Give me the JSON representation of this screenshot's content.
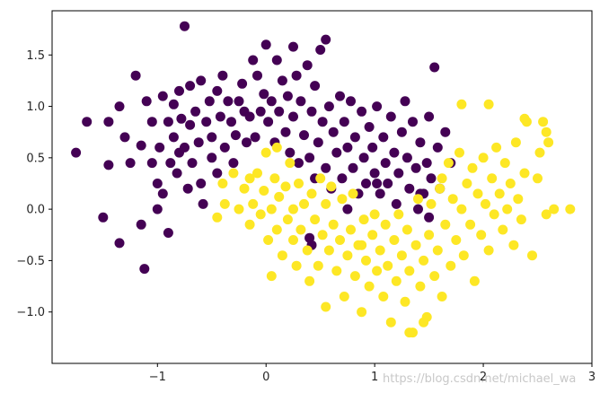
{
  "chart_data": {
    "type": "scatter",
    "title": "",
    "xlabel": "",
    "ylabel": "",
    "xlim": [
      -1.97,
      3.0
    ],
    "ylim": [
      -1.5,
      1.93
    ],
    "x_ticks": [
      -1,
      0,
      1,
      2,
      3
    ],
    "y_ticks": [
      -1.0,
      -0.5,
      0.0,
      0.5,
      1.0,
      1.5
    ],
    "x_tick_labels": [
      "−1",
      "0",
      "1",
      "2",
      "3"
    ],
    "y_tick_labels": [
      "−1.0",
      "−0.5",
      "0.0",
      "0.5",
      "1.0",
      "1.5"
    ],
    "grid": false,
    "legend": "none",
    "series": [
      {
        "color": "#440154",
        "points": [
          [
            -1.75,
            0.55
          ],
          [
            -1.65,
            0.85
          ],
          [
            -1.5,
            -0.08
          ],
          [
            -1.45,
            0.85
          ],
          [
            -1.45,
            0.43
          ],
          [
            -1.35,
            1.0
          ],
          [
            -1.35,
            -0.33
          ],
          [
            -1.3,
            0.7
          ],
          [
            -1.25,
            0.45
          ],
          [
            -1.2,
            1.3
          ],
          [
            -1.15,
            0.62
          ],
          [
            -1.15,
            -0.15
          ],
          [
            -1.12,
            -0.58
          ],
          [
            -1.1,
            1.05
          ],
          [
            -1.05,
            0.45
          ],
          [
            -1.05,
            0.85
          ],
          [
            -1.0,
            0.25
          ],
          [
            -1.0,
            0.0
          ],
          [
            -0.98,
            0.6
          ],
          [
            -0.95,
            1.1
          ],
          [
            -0.95,
            0.15
          ],
          [
            -0.9,
            0.85
          ],
          [
            -0.9,
            -0.23
          ],
          [
            -0.88,
            0.45
          ],
          [
            -0.85,
            1.02
          ],
          [
            -0.85,
            0.7
          ],
          [
            -0.82,
            0.35
          ],
          [
            -0.8,
            1.15
          ],
          [
            -0.8,
            0.55
          ],
          [
            -0.78,
            0.88
          ],
          [
            -0.75,
            1.78
          ],
          [
            -0.75,
            0.6
          ],
          [
            -0.72,
            0.2
          ],
          [
            -0.7,
            1.2
          ],
          [
            -0.7,
            0.82
          ],
          [
            -0.68,
            0.45
          ],
          [
            -0.65,
            0.95
          ],
          [
            -0.62,
            0.65
          ],
          [
            -0.6,
            1.25
          ],
          [
            -0.6,
            0.25
          ],
          [
            -0.58,
            0.05
          ],
          [
            -0.55,
            0.85
          ],
          [
            -0.52,
            1.05
          ],
          [
            -0.5,
            0.5
          ],
          [
            -0.5,
            0.7
          ],
          [
            -0.45,
            1.15
          ],
          [
            -0.45,
            0.35
          ],
          [
            -0.42,
            0.9
          ],
          [
            -0.4,
            1.3
          ],
          [
            -0.38,
            0.6
          ],
          [
            -0.35,
            1.05
          ],
          [
            -0.32,
            0.85
          ],
          [
            -0.3,
            0.45
          ],
          [
            -0.28,
            0.72
          ],
          [
            -0.25,
            1.05
          ],
          [
            -0.22,
            1.22
          ],
          [
            -0.2,
            0.95
          ],
          [
            -0.18,
            0.65
          ],
          [
            -0.15,
            0.9
          ],
          [
            -0.12,
            1.45
          ],
          [
            -0.1,
            0.7
          ],
          [
            -0.08,
            1.3
          ],
          [
            -0.05,
            0.95
          ],
          [
            -0.02,
            1.12
          ],
          [
            0.0,
            1.6
          ],
          [
            0.02,
            0.85
          ],
          [
            0.05,
            1.05
          ],
          [
            0.08,
            0.65
          ],
          [
            0.1,
            1.45
          ],
          [
            0.12,
            0.95
          ],
          [
            0.15,
            1.25
          ],
          [
            0.18,
            0.75
          ],
          [
            0.2,
            1.1
          ],
          [
            0.22,
            0.55
          ],
          [
            0.25,
            1.58
          ],
          [
            0.25,
            0.9
          ],
          [
            0.28,
            1.3
          ],
          [
            0.3,
            0.45
          ],
          [
            0.32,
            1.05
          ],
          [
            0.35,
            0.72
          ],
          [
            0.38,
            1.4
          ],
          [
            0.4,
            0.5
          ],
          [
            0.42,
            0.95
          ],
          [
            0.45,
            1.2
          ],
          [
            0.45,
            0.3
          ],
          [
            0.48,
            0.65
          ],
          [
            0.5,
            1.55
          ],
          [
            0.52,
            0.85
          ],
          [
            0.55,
            1.65
          ],
          [
            0.55,
            0.4
          ],
          [
            0.58,
            1.0
          ],
          [
            0.6,
            0.2
          ],
          [
            0.62,
            0.75
          ],
          [
            0.65,
            0.55
          ],
          [
            0.68,
            1.1
          ],
          [
            0.7,
            0.3
          ],
          [
            0.72,
            0.85
          ],
          [
            0.75,
            0.0
          ],
          [
            0.75,
            0.6
          ],
          [
            0.78,
            1.05
          ],
          [
            0.8,
            0.4
          ],
          [
            0.82,
            0.7
          ],
          [
            0.85,
            0.15
          ],
          [
            0.88,
            0.95
          ],
          [
            0.9,
            0.5
          ],
          [
            0.92,
            0.25
          ],
          [
            0.95,
            0.8
          ],
          [
            0.98,
            0.6
          ],
          [
            1.0,
            0.35
          ],
          [
            1.02,
            1.0
          ],
          [
            1.05,
            0.15
          ],
          [
            1.08,
            0.7
          ],
          [
            1.1,
            0.45
          ],
          [
            1.12,
            0.25
          ],
          [
            1.15,
            0.9
          ],
          [
            1.18,
            0.55
          ],
          [
            1.2,
            0.05
          ],
          [
            1.22,
            0.35
          ],
          [
            1.25,
            0.75
          ],
          [
            1.28,
            1.05
          ],
          [
            1.3,
            0.5
          ],
          [
            1.32,
            0.2
          ],
          [
            1.35,
            0.85
          ],
          [
            1.38,
            0.4
          ],
          [
            1.4,
            0.0
          ],
          [
            1.42,
            0.65
          ],
          [
            1.45,
            0.15
          ],
          [
            1.48,
            0.45
          ],
          [
            1.5,
            0.9
          ],
          [
            1.52,
            0.3
          ],
          [
            1.55,
            1.38
          ],
          [
            1.58,
            0.6
          ],
          [
            1.6,
            0.2
          ],
          [
            1.65,
            0.75
          ],
          [
            1.7,
            0.45
          ],
          [
            1.5,
            -0.08
          ],
          [
            1.42,
            0.15
          ],
          [
            1.02,
            0.25
          ],
          [
            0.42,
            -0.35
          ],
          [
            0.4,
            -0.28
          ]
        ]
      },
      {
        "color": "#fde725",
        "points": [
          [
            -0.45,
            -0.08
          ],
          [
            -0.4,
            0.25
          ],
          [
            -0.38,
            0.05
          ],
          [
            -0.3,
            0.35
          ],
          [
            -0.25,
            0.0
          ],
          [
            -0.2,
            0.2
          ],
          [
            -0.15,
            -0.15
          ],
          [
            -0.12,
            0.05
          ],
          [
            -0.08,
            0.35
          ],
          [
            -0.05,
            -0.05
          ],
          [
            -0.02,
            0.18
          ],
          [
            0.0,
            0.55
          ],
          [
            0.02,
            -0.3
          ],
          [
            0.05,
            -0.65
          ],
          [
            0.05,
            0.0
          ],
          [
            0.08,
            0.3
          ],
          [
            0.1,
            -0.2
          ],
          [
            0.12,
            0.12
          ],
          [
            0.15,
            -0.45
          ],
          [
            0.18,
            0.22
          ],
          [
            0.2,
            -0.1
          ],
          [
            0.22,
            0.45
          ],
          [
            0.25,
            -0.3
          ],
          [
            0.25,
            0.0
          ],
          [
            0.28,
            -0.55
          ],
          [
            0.3,
            0.25
          ],
          [
            0.32,
            -0.2
          ],
          [
            0.35,
            0.05
          ],
          [
            0.38,
            -0.4
          ],
          [
            0.4,
            -0.7
          ],
          [
            0.42,
            0.15
          ],
          [
            0.45,
            -0.1
          ],
          [
            0.48,
            -0.55
          ],
          [
            0.5,
            0.3
          ],
          [
            0.52,
            -0.25
          ],
          [
            0.55,
            -0.95
          ],
          [
            0.55,
            0.05
          ],
          [
            0.58,
            -0.4
          ],
          [
            0.6,
            0.22
          ],
          [
            0.62,
            -0.15
          ],
          [
            0.65,
            -0.6
          ],
          [
            0.68,
            -0.3
          ],
          [
            0.7,
            0.1
          ],
          [
            0.72,
            -0.85
          ],
          [
            0.75,
            -0.45
          ],
          [
            0.78,
            -0.2
          ],
          [
            0.8,
            0.15
          ],
          [
            0.82,
            -0.65
          ],
          [
            0.85,
            -0.35
          ],
          [
            0.88,
            -1.0
          ],
          [
            0.9,
            -0.1
          ],
          [
            0.92,
            -0.5
          ],
          [
            0.95,
            -0.75
          ],
          [
            0.98,
            -0.25
          ],
          [
            1.0,
            -0.05
          ],
          [
            1.02,
            -0.6
          ],
          [
            1.05,
            -0.4
          ],
          [
            1.08,
            -0.85
          ],
          [
            1.1,
            -0.15
          ],
          [
            1.12,
            -0.55
          ],
          [
            1.15,
            -1.1
          ],
          [
            1.18,
            -0.3
          ],
          [
            1.2,
            -0.7
          ],
          [
            1.22,
            -0.05
          ],
          [
            1.25,
            -0.45
          ],
          [
            1.28,
            -0.9
          ],
          [
            1.3,
            -0.2
          ],
          [
            1.32,
            -0.6
          ],
          [
            1.35,
            -1.2
          ],
          [
            1.38,
            -0.35
          ],
          [
            1.4,
            0.1
          ],
          [
            1.42,
            -0.75
          ],
          [
            1.45,
            -0.5
          ],
          [
            1.48,
            -1.05
          ],
          [
            1.5,
            -0.25
          ],
          [
            1.52,
            0.05
          ],
          [
            1.55,
            -0.65
          ],
          [
            1.58,
            -0.4
          ],
          [
            1.6,
            0.2
          ],
          [
            1.62,
            -0.85
          ],
          [
            1.65,
            -0.15
          ],
          [
            1.68,
            0.45
          ],
          [
            1.7,
            -0.55
          ],
          [
            1.72,
            0.1
          ],
          [
            1.75,
            -0.3
          ],
          [
            1.78,
            0.55
          ],
          [
            1.8,
            0.0
          ],
          [
            1.82,
            -0.45
          ],
          [
            1.85,
            0.25
          ],
          [
            1.88,
            -0.15
          ],
          [
            1.9,
            0.4
          ],
          [
            1.92,
            -0.7
          ],
          [
            1.95,
            0.15
          ],
          [
            1.98,
            -0.25
          ],
          [
            2.0,
            0.5
          ],
          [
            2.02,
            0.05
          ],
          [
            2.05,
            -0.4
          ],
          [
            2.08,
            0.3
          ],
          [
            2.1,
            -0.05
          ],
          [
            2.12,
            0.6
          ],
          [
            2.15,
            0.15
          ],
          [
            2.18,
            -0.2
          ],
          [
            2.2,
            0.45
          ],
          [
            2.22,
            0.0
          ],
          [
            2.25,
            0.25
          ],
          [
            2.28,
            -0.35
          ],
          [
            2.3,
            0.65
          ],
          [
            2.32,
            0.1
          ],
          [
            2.35,
            -0.1
          ],
          [
            2.38,
            0.35
          ],
          [
            2.4,
            0.85
          ],
          [
            2.45,
            -0.45
          ],
          [
            2.5,
            0.3
          ],
          [
            2.52,
            0.55
          ],
          [
            2.55,
            0.85
          ],
          [
            2.58,
            -0.05
          ],
          [
            2.6,
            0.65
          ],
          [
            2.65,
            0.0
          ],
          [
            2.8,
            0.0
          ],
          [
            1.8,
            1.02
          ],
          [
            2.05,
            1.02
          ],
          [
            2.38,
            0.88
          ],
          [
            2.58,
            0.75
          ],
          [
            1.62,
            0.3
          ],
          [
            1.32,
            -1.2
          ],
          [
            1.45,
            -1.1
          ],
          [
            0.88,
            -0.35
          ],
          [
            -0.15,
            0.3
          ],
          [
            0.1,
            0.6
          ]
        ]
      }
    ]
  },
  "watermark": "https://blog.csdn.net/michael_wa"
}
